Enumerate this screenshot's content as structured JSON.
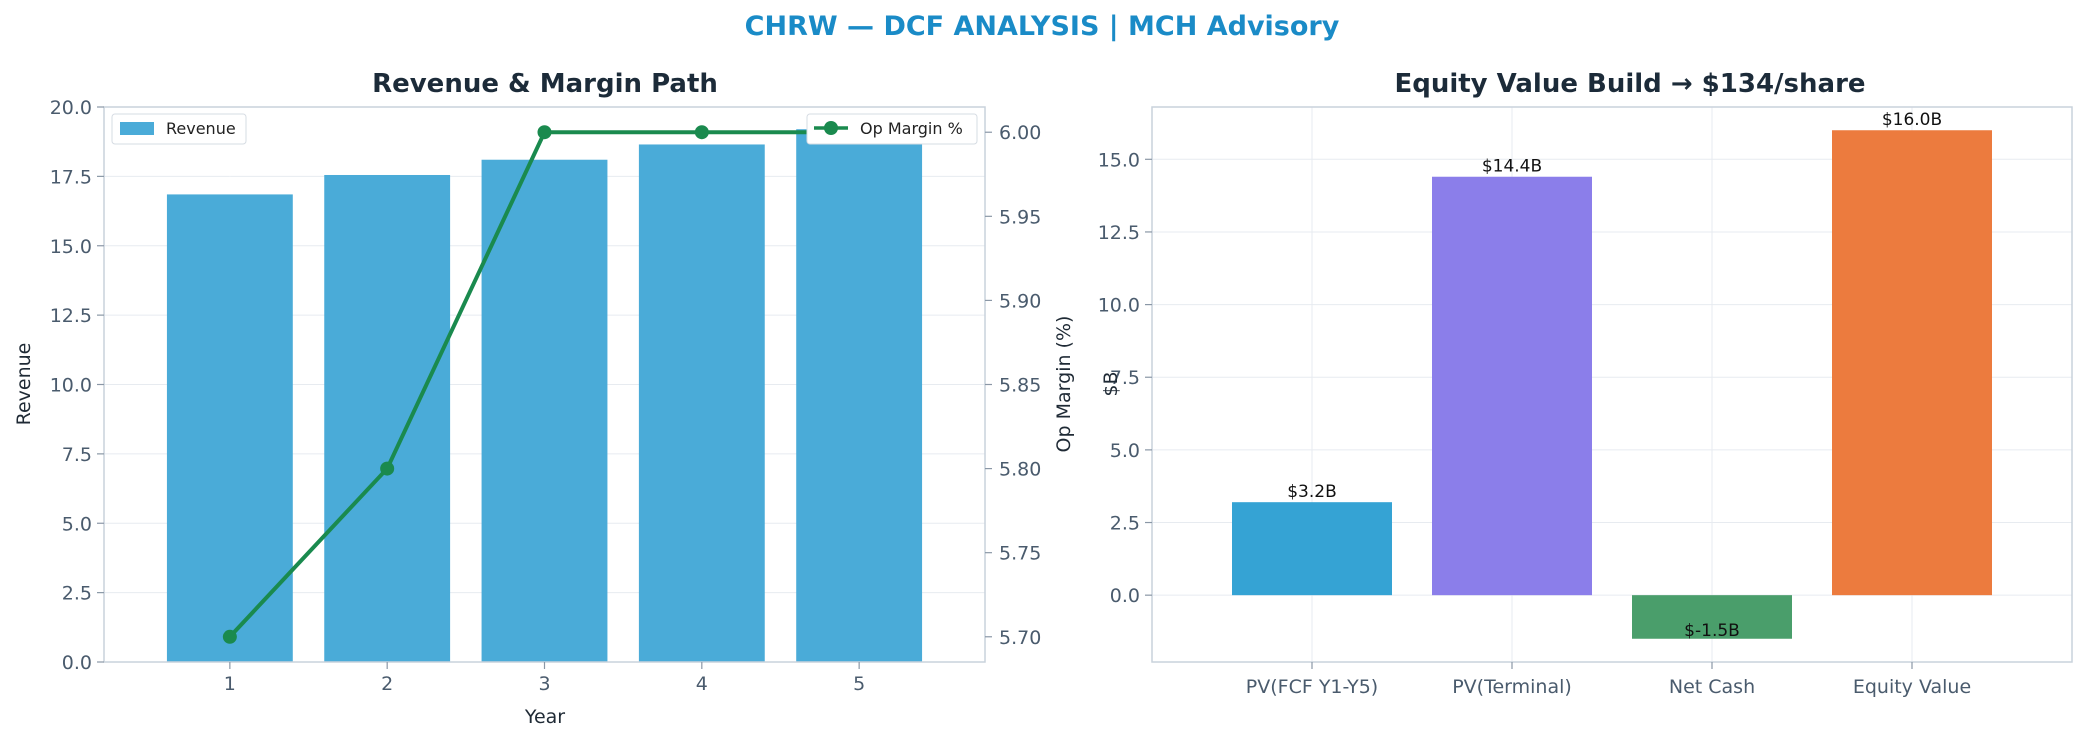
{
  "page": {
    "suptitle": "CHRW — DCF ANALYSIS | MCH Advisory"
  },
  "chart_data": [
    {
      "type": "bar",
      "title": "Revenue & Margin Path",
      "xlabel": "Year",
      "ylabel": "Revenue",
      "categories": [
        "1",
        "2",
        "3",
        "4",
        "5"
      ],
      "series": [
        {
          "name": "Revenue",
          "values": [
            16.85,
            17.55,
            18.1,
            18.65,
            19.2
          ],
          "color": "#4aabd8"
        }
      ],
      "ylim": [
        0,
        20
      ],
      "yticks": [
        0.0,
        2.5,
        5.0,
        7.5,
        10.0,
        12.5,
        15.0,
        17.5,
        20.0
      ],
      "secondary_axis": {
        "type": "line",
        "ylabel": "Op Margin (%)",
        "series": [
          {
            "name": "Op Margin %",
            "values": [
              5.7,
              5.8,
              6.0,
              6.0,
              6.0
            ],
            "color": "#1a8a4e"
          }
        ],
        "ylim": [
          5.685,
          6.015
        ],
        "yticks": [
          5.7,
          5.75,
          5.8,
          5.85,
          5.9,
          5.95,
          6.0
        ]
      },
      "legend": [
        "upper-left: Revenue",
        "upper-right: Op Margin %"
      ],
      "grid": true
    },
    {
      "type": "bar",
      "title": "Equity Value Build → $134/share",
      "xlabel": "",
      "ylabel": "$B",
      "categories": [
        "PV(FCF Y1-Y5)",
        "PV(Terminal)",
        "Net Cash",
        "Equity Value"
      ],
      "values": [
        3.2,
        14.4,
        -1.5,
        16.0
      ],
      "data_labels": [
        "$3.2B",
        "$14.4B",
        "$-1.5B",
        "$16.0B"
      ],
      "colors": [
        "#35a3d4",
        "#8b7eea",
        "#4a9e6b",
        "#ec7b3e"
      ],
      "ylim": [
        -2.3,
        16.8
      ],
      "yticks": [
        0.0,
        2.5,
        5.0,
        7.5,
        10.0,
        12.5,
        15.0
      ],
      "grid": true
    }
  ]
}
